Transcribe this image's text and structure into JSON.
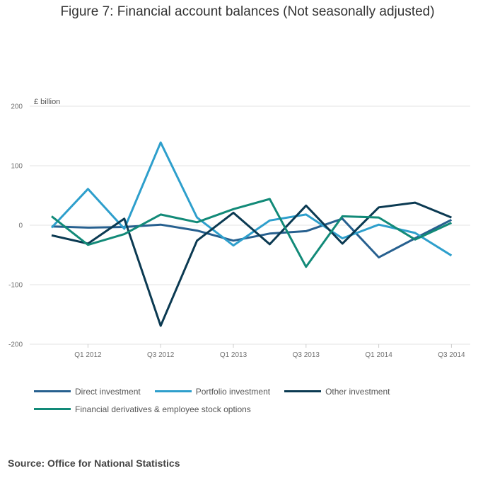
{
  "title": "Figure 7: Financial account balances (Not seasonally adjusted)",
  "source": "Source: Office for National Statistics",
  "chart_data": {
    "type": "line",
    "title": "Figure 7: Financial account balances (Not seasonally adjusted)",
    "ylabel": "£ billion",
    "xlabel": "",
    "ylim": [
      -200,
      200
    ],
    "yticks": [
      200,
      100,
      0,
      -100,
      -200
    ],
    "x": [
      "Q4 2011",
      "Q1 2012",
      "Q2 2012",
      "Q3 2012",
      "Q4 2012",
      "Q1 2013",
      "Q2 2013",
      "Q3 2013",
      "Q4 2013",
      "Q1 2014",
      "Q2 2014",
      "Q3 2014"
    ],
    "xtick_labels": [
      "",
      "Q1 2012",
      "",
      "Q3 2012",
      "",
      "Q1 2013",
      "",
      "Q3 2013",
      "",
      "Q1 2014",
      "",
      "Q3 2014"
    ],
    "grid": true,
    "legend_position": "bottom",
    "series": [
      {
        "name": "Direct investment",
        "color": "#27608f",
        "values": [
          -2,
          -4,
          -3,
          1,
          -9,
          -26,
          -14,
          -10,
          11,
          -54,
          -22,
          9
        ]
      },
      {
        "name": "Portfolio investment",
        "color": "#2e9fcc",
        "values": [
          -4,
          61,
          -6,
          139,
          13,
          -34,
          8,
          18,
          -22,
          1,
          -13,
          -51
        ]
      },
      {
        "name": "Other investment",
        "color": "#0b3a52",
        "values": [
          -17,
          -31,
          11,
          -169,
          -26,
          21,
          -32,
          33,
          -31,
          30,
          38,
          13
        ]
      },
      {
        "name": "Financial derivatives & employee stock options",
        "color": "#128a78",
        "values": [
          15,
          -33,
          -15,
          18,
          5,
          27,
          44,
          -70,
          15,
          13,
          -24,
          4
        ]
      }
    ]
  }
}
